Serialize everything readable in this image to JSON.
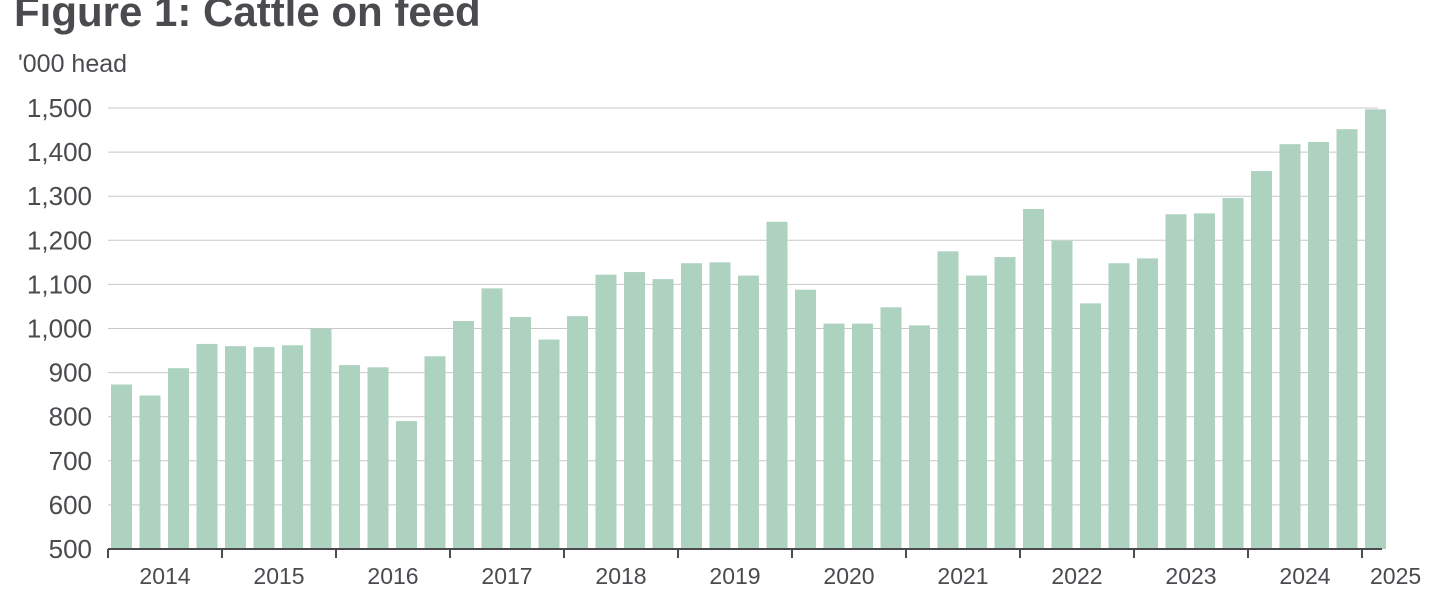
{
  "chart_data": {
    "type": "bar",
    "title": "Figure 1: Cattle on feed",
    "ylabel": "'000 head",
    "xlabel": "",
    "ylim": [
      500,
      1500
    ],
    "yticks": [
      500,
      600,
      700,
      800,
      900,
      1000,
      1100,
      1200,
      1300,
      1400,
      1500
    ],
    "ytick_labels": [
      "500",
      "600",
      "700",
      "800",
      "900",
      "1,000",
      "1,100",
      "1,200",
      "1,300",
      "1,400",
      "1,500"
    ],
    "year_labels": [
      "2014",
      "2015",
      "2016",
      "2017",
      "2018",
      "2019",
      "2020",
      "2021",
      "2022",
      "2023",
      "2024",
      "2025"
    ],
    "bars_per_year": 4,
    "grid": true,
    "legend": "none",
    "color": "#aed2c0",
    "series": [
      {
        "values": [
          873,
          848,
          910,
          965,
          960,
          958,
          962,
          1000,
          917,
          912,
          790,
          937,
          1017,
          1091,
          1026,
          975,
          1028,
          1122,
          1128,
          1112,
          1148,
          1150,
          1120,
          1242,
          1088,
          1011,
          1011,
          1048,
          1007,
          1175,
          1120,
          1162,
          1271,
          1199,
          1057,
          1148,
          1159,
          1259,
          1261,
          1296,
          1357,
          1418,
          1423,
          1452,
          1497
        ]
      }
    ]
  }
}
